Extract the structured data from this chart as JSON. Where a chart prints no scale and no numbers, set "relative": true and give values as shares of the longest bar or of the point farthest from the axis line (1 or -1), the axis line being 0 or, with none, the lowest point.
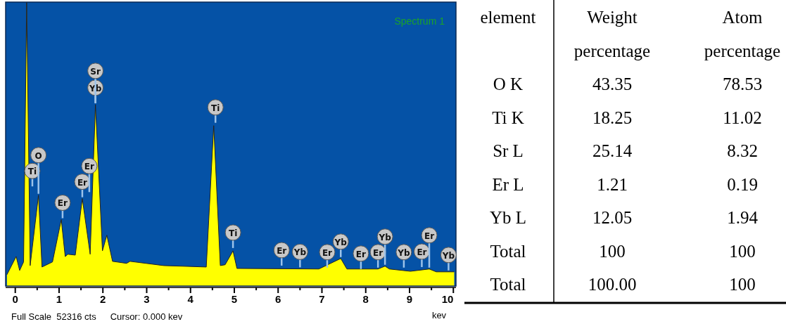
{
  "chart_data": [
    {
      "type": "area",
      "relative": true,
      "xlabel": "kev",
      "xlim": [
        -0.22,
        10.06
      ],
      "xticks": [
        0,
        {
          "value": 0.5,
          "label": null
        },
        1,
        {
          "value": 1.5,
          "label": null
        },
        2,
        {
          "value": 2.5,
          "label": null
        },
        3,
        {
          "value": 3.5,
          "label": null
        },
        4,
        {
          "value": 4.5,
          "label": null
        },
        5,
        {
          "value": 5.5,
          "label": null
        },
        6,
        {
          "value": 6.5,
          "label": null
        },
        7,
        {
          "value": 7.5,
          "label": null
        },
        8,
        {
          "value": 8.5,
          "label": null
        },
        9,
        {
          "value": 9.5,
          "label": null
        },
        10
      ],
      "series": [
        {
          "color": "#ffff00",
          "x": [
            -0.19,
            0.02,
            0.1,
            0.19,
            0.26,
            0.34,
            0.53,
            0.61,
            0.85,
            1.05,
            1.14,
            1.2,
            1.37,
            1.53,
            1.71,
            1.83,
            1.99,
            2.09,
            2.22,
            2.54,
            2.62,
            3.39,
            4.36,
            4.53,
            4.68,
            4.79,
            4.97,
            5.06,
            6.93,
            7.43,
            7.57,
            8.28,
            8.44,
            8.54,
            9.02,
            9.45,
            9.61,
            10.02
          ],
          "values": [
            0.04,
            0.104,
            0.055,
            0.085,
            1,
            0.072,
            0.32,
            0.067,
            0.085,
            0.234,
            0.104,
            0.112,
            0.109,
            0.308,
            0.112,
            0.639,
            0.124,
            0.179,
            0.087,
            0.08,
            0.087,
            0.072,
            0.067,
            0.565,
            0.072,
            0.075,
            0.124,
            0.062,
            0.06,
            0.097,
            0.06,
            0.06,
            0.07,
            0.06,
            0.052,
            0.06,
            0.05,
            0.05
          ]
        }
      ],
      "annotations": [
        "Spectrum 1",
        "Full Scale  52316 cts",
        "Cursor: 0.000 kev",
        {
          "text": "Ti",
          "x": 0.39,
          "y": 0.346
        },
        {
          "text": "O",
          "x": 0.53,
          "y": 0.32
        },
        {
          "text": "Er",
          "x": 1.08,
          "y": 0.234
        },
        {
          "text": "Er",
          "x": 1.53,
          "y": 0.308
        },
        {
          "text": "Er",
          "x": 1.69,
          "y": 0.326
        },
        {
          "text": "Yb",
          "x": 1.83,
          "y": 0.639
        },
        {
          "text": "Sr",
          "x": 1.83,
          "y": 0.639
        },
        {
          "text": "Ti",
          "x": 4.57,
          "y": 0.57
        },
        {
          "text": "Ti",
          "x": 4.97,
          "y": 0.129
        },
        {
          "text": "Er",
          "x": 6.08,
          "y": 0.067
        },
        {
          "text": "Yb",
          "x": 6.5,
          "y": 0.061
        },
        {
          "text": "Er",
          "x": 7.12,
          "y": 0.06
        },
        {
          "text": "Yb",
          "x": 7.43,
          "y": 0.097
        },
        {
          "text": "Er",
          "x": 7.89,
          "y": 0.055
        },
        {
          "text": "Er",
          "x": 8.28,
          "y": 0.06
        },
        {
          "text": "Yb",
          "x": 8.44,
          "y": 0.07
        },
        {
          "text": "Yb",
          "x": 8.87,
          "y": 0.06
        },
        {
          "text": "Er",
          "x": 9.28,
          "y": 0.062
        },
        {
          "text": "Er",
          "x": 9.45,
          "y": 0.06
        },
        {
          "text": "Yb",
          "x": 9.89,
          "y": 0.05
        }
      ]
    },
    {
      "type": "other",
      "categories": [
        "element",
        "Weight percentage",
        "Atom percentage"
      ],
      "y_categories": [
        "O K",
        "Ti K",
        "Sr L",
        "Er L",
        "Yb L",
        "Total",
        "Total"
      ],
      "cell_labels": [
        [
          "43.35",
          "78.53"
        ],
        [
          "18.25",
          "11.02"
        ],
        [
          "25.14",
          "8.32"
        ],
        [
          "1.21",
          "0.19"
        ],
        [
          "12.05",
          "1.94"
        ],
        [
          "100",
          "100"
        ],
        [
          "100.00",
          "100"
        ]
      ]
    }
  ]
}
